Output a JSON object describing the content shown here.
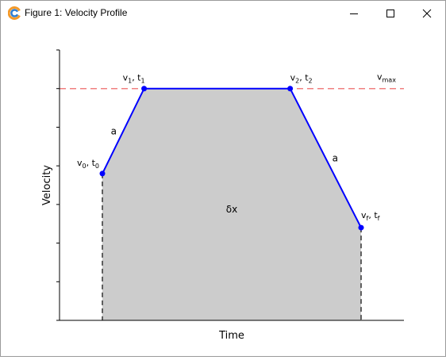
{
  "window": {
    "title": "Figure 1: Velocity Profile"
  },
  "chart_data": {
    "type": "line",
    "title": "",
    "xlabel": "Time",
    "ylabel": "Velocity",
    "xlim": [
      0,
      8.5
    ],
    "ylim": [
      0,
      7
    ],
    "tick_labels_shown": false,
    "grid": false,
    "series": [
      {
        "style": "solid",
        "color": "#0000ff",
        "marker": "circle",
        "x": [
          0,
          1,
          4.5,
          6.2
        ],
        "y": [
          3.8,
          6,
          6,
          2.4
        ]
      }
    ],
    "point_labels": [
      {
        "v": "v",
        "v_sub": "0",
        "t": "t",
        "t_sub": "0"
      },
      {
        "v": "v",
        "v_sub": "1",
        "t": "t",
        "t_sub": "1"
      },
      {
        "v": "v",
        "v_sub": "2",
        "t": "t",
        "t_sub": "2"
      },
      {
        "v": "v",
        "v_sub": "f",
        "t": "t",
        "t_sub": "f"
      }
    ],
    "reference_line": {
      "y": 6,
      "color": "#f08080",
      "style": "dashed",
      "label": "v",
      "label_sub": "max"
    },
    "fill_under_curve": {
      "color": "#cccccc",
      "label": "δx"
    },
    "annotations": [
      {
        "text": "a",
        "segment": "accel"
      },
      {
        "text": "a",
        "segment": "decel"
      }
    ],
    "drop_lines": {
      "style": "dashed",
      "color": "#333333"
    }
  }
}
